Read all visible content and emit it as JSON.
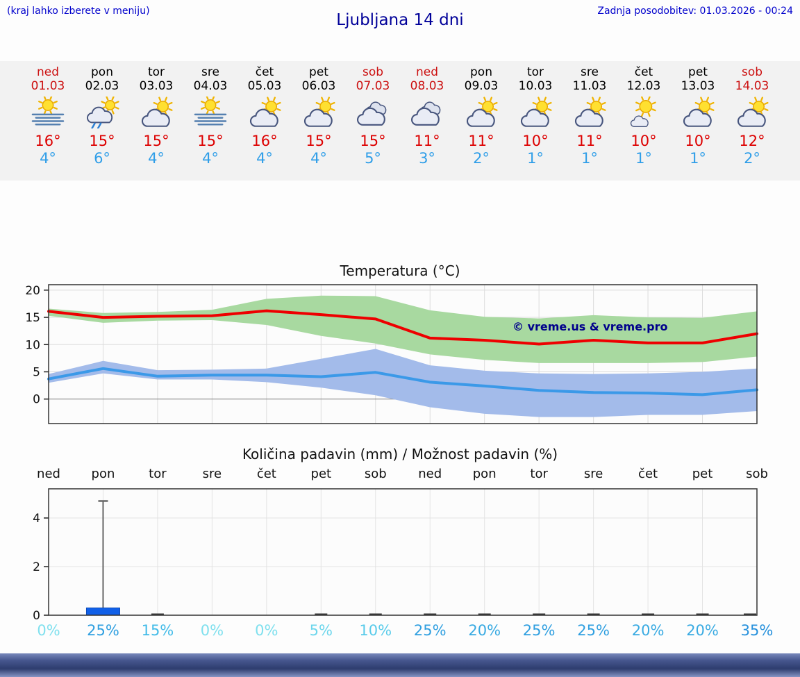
{
  "header": {
    "hint": "(kraj lahko izberete v meniju)",
    "title": "Ljubljana 14 dni",
    "last_update": "Zadnja posodobitev: 01.03.2026 - 00:24"
  },
  "colors": {
    "link_blue": "#0000cc",
    "title_blue": "#000099",
    "weekend_red": "#cc1111",
    "weekday_black": "#000000",
    "high_temp_red": "#dd0000",
    "low_temp_blue": "#2f9ee8",
    "strip_background": "#f2f2f2"
  },
  "forecast": {
    "days": [
      {
        "name": "ned",
        "date": "01.03",
        "weekend": true,
        "icon": "sun-fog",
        "high": "16°",
        "low": "4°"
      },
      {
        "name": "pon",
        "date": "02.03",
        "weekend": false,
        "icon": "sun-cloud-rain",
        "high": "15°",
        "low": "6°"
      },
      {
        "name": "tor",
        "date": "03.03",
        "weekend": false,
        "icon": "sun-cloud",
        "high": "15°",
        "low": "4°"
      },
      {
        "name": "sre",
        "date": "04.03",
        "weekend": false,
        "icon": "sun-fog",
        "high": "15°",
        "low": "4°"
      },
      {
        "name": "čet",
        "date": "05.03",
        "weekend": false,
        "icon": "sun-cloud",
        "high": "16°",
        "low": "4°"
      },
      {
        "name": "pet",
        "date": "06.03",
        "weekend": false,
        "icon": "sun-cloud",
        "high": "15°",
        "low": "4°"
      },
      {
        "name": "sob",
        "date": "07.03",
        "weekend": true,
        "icon": "cloud",
        "high": "15°",
        "low": "5°"
      },
      {
        "name": "ned",
        "date": "08.03",
        "weekend": true,
        "icon": "cloud",
        "high": "11°",
        "low": "3°"
      },
      {
        "name": "pon",
        "date": "09.03",
        "weekend": false,
        "icon": "sun-cloud",
        "high": "11°",
        "low": "2°"
      },
      {
        "name": "tor",
        "date": "10.03",
        "weekend": false,
        "icon": "sun-cloud",
        "high": "10°",
        "low": "1°"
      },
      {
        "name": "sre",
        "date": "11.03",
        "weekend": false,
        "icon": "sun-cloud",
        "high": "11°",
        "low": "1°"
      },
      {
        "name": "čet",
        "date": "12.03",
        "weekend": false,
        "icon": "sun-small-cloud",
        "high": "10°",
        "low": "1°"
      },
      {
        "name": "pet",
        "date": "13.03",
        "weekend": false,
        "icon": "sun-cloud",
        "high": "10°",
        "low": "1°"
      },
      {
        "name": "sob",
        "date": "14.03",
        "weekend": true,
        "icon": "sun-cloud",
        "high": "12°",
        "low": "2°"
      }
    ]
  },
  "chart_data": [
    {
      "type": "line",
      "title": "Temperatura (°C)",
      "x": [
        "ned 01.03",
        "pon 02.03",
        "tor 03.03",
        "sre 04.03",
        "čet 05.03",
        "pet 06.03",
        "sob 07.03",
        "ned 08.03",
        "pon 09.03",
        "tor 10.03",
        "sre 11.03",
        "čet 12.03",
        "pet 13.03",
        "sob 14.03"
      ],
      "ylim": [
        -4.5,
        21
      ],
      "yticks": [
        0,
        5,
        10,
        15,
        20
      ],
      "grid": true,
      "legend": "none",
      "watermark": "© vreme.us & vreme.pro",
      "watermark_color": "#00008b",
      "band_colors": {
        "max": "#a8d9a0",
        "min": "#a3bbea"
      },
      "series": [
        {
          "name": "max",
          "color": "#ee0000",
          "values": [
            16.1,
            15.0,
            15.2,
            15.3,
            16.2,
            15.5,
            14.7,
            11.2,
            10.8,
            10.1,
            10.8,
            10.3,
            10.3,
            12.0
          ]
        },
        {
          "name": "min",
          "color": "#3b99e8",
          "values": [
            3.7,
            5.6,
            4.2,
            4.4,
            4.4,
            4.1,
            4.9,
            3.1,
            2.4,
            1.6,
            1.2,
            1.1,
            0.8,
            1.7
          ]
        },
        {
          "name": "max_range_high",
          "values": [
            16.6,
            15.8,
            16.0,
            16.4,
            18.4,
            19.0,
            18.9,
            16.3,
            15.1,
            14.8,
            15.4,
            15.0,
            14.9,
            16.1
          ]
        },
        {
          "name": "max_range_low",
          "values": [
            15.3,
            14.0,
            14.4,
            14.5,
            13.6,
            11.6,
            10.2,
            8.2,
            7.2,
            6.6,
            6.6,
            6.6,
            6.8,
            7.8
          ]
        },
        {
          "name": "min_range_high",
          "values": [
            4.6,
            7.0,
            5.3,
            5.4,
            5.6,
            7.4,
            9.2,
            6.2,
            5.2,
            4.7,
            4.6,
            4.7,
            5.0,
            5.6
          ]
        },
        {
          "name": "min_range_low",
          "values": [
            3.0,
            4.7,
            3.6,
            3.6,
            3.1,
            2.1,
            0.7,
            -1.5,
            -2.7,
            -3.3,
            -3.3,
            -2.9,
            -2.9,
            -2.2
          ]
        }
      ]
    },
    {
      "type": "bar",
      "title": "Količina padavin (mm) / Možnost padavin (%)",
      "categories": [
        "ned",
        "pon",
        "tor",
        "sre",
        "čet",
        "pet",
        "sob",
        "ned",
        "pon",
        "tor",
        "sre",
        "čet",
        "pet",
        "sob"
      ],
      "values": [
        0,
        0.3,
        0.03,
        0,
        0,
        0.03,
        0.03,
        0.03,
        0.03,
        0.03,
        0.03,
        0.03,
        0.03,
        0.03
      ],
      "whisker_max": [
        0,
        4.7,
        0,
        0,
        0,
        0,
        0,
        0,
        0,
        0,
        0,
        0,
        0,
        0
      ],
      "bar_color": "#1160e8",
      "whisker_color": "#666666",
      "ylim": [
        0,
        5.2
      ],
      "yticks": [
        0,
        2,
        4
      ],
      "grid": true,
      "probabilities": [
        {
          "label": "0%",
          "color": "#7fe0ee"
        },
        {
          "label": "25%",
          "color": "#2f9fe0"
        },
        {
          "label": "15%",
          "color": "#41bbe8"
        },
        {
          "label": "0%",
          "color": "#7fe0ee"
        },
        {
          "label": "0%",
          "color": "#7fe0ee"
        },
        {
          "label": "5%",
          "color": "#6cd6ec"
        },
        {
          "label": "10%",
          "color": "#59cbea"
        },
        {
          "label": "25%",
          "color": "#2f9fe0"
        },
        {
          "label": "20%",
          "color": "#38aae2"
        },
        {
          "label": "25%",
          "color": "#2f9fe0"
        },
        {
          "label": "25%",
          "color": "#2f9fe0"
        },
        {
          "label": "20%",
          "color": "#38aae2"
        },
        {
          "label": "20%",
          "color": "#38aae2"
        },
        {
          "label": "35%",
          "color": "#2590dc"
        }
      ]
    }
  ]
}
